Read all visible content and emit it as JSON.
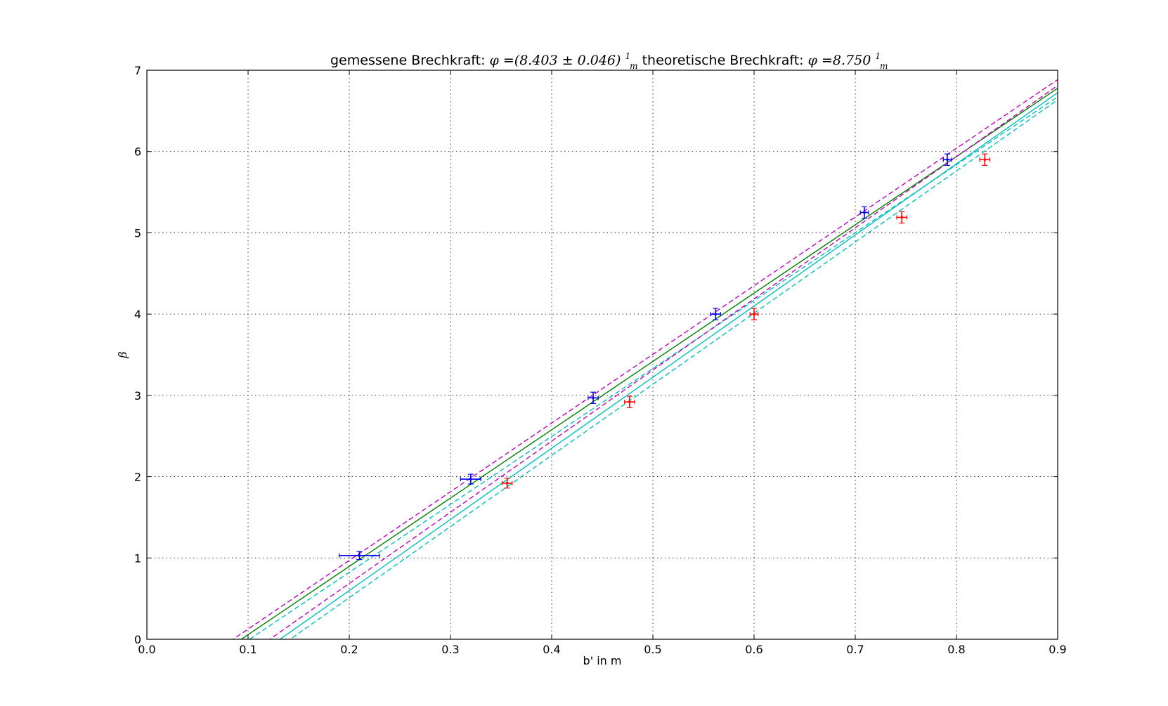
{
  "chart_data": {
    "type": "scatter",
    "title": {
      "part1": "gemessene Brechkraft: ",
      "phi_symbol": "φ",
      "measured_value": "=(8.403 ± 0.046)",
      "frac_num": "1",
      "frac_den": "m",
      "part2": " theoretische Brechkraft:  ",
      "theoretical_value": "=8.750"
    },
    "xlabel": "b' in m",
    "ylabel": "β",
    "xlim": [
      0.0,
      0.9
    ],
    "ylim": [
      0,
      7
    ],
    "x_ticks": [
      "0.0",
      "0.1",
      "0.2",
      "0.3",
      "0.4",
      "0.5",
      "0.6",
      "0.7",
      "0.8",
      "0.9"
    ],
    "y_ticks": [
      "0",
      "1",
      "2",
      "3",
      "4",
      "5",
      "6",
      "7"
    ],
    "grid": true,
    "legend": "none",
    "series": [
      {
        "color": "#0000ff",
        "points": [
          {
            "x": 0.21,
            "y": 1.03,
            "xerr": 0.02,
            "yerr": 0.05
          },
          {
            "x": 0.32,
            "y": 1.97,
            "xerr": 0.01,
            "yerr": 0.06
          },
          {
            "x": 0.441,
            "y": 2.97,
            "xerr": 0.005,
            "yerr": 0.07
          },
          {
            "x": 0.562,
            "y": 4.0,
            "xerr": 0.005,
            "yerr": 0.07
          },
          {
            "x": 0.709,
            "y": 5.25,
            "xerr": 0.004,
            "yerr": 0.07
          },
          {
            "x": 0.791,
            "y": 5.9,
            "xerr": 0.004,
            "yerr": 0.07
          }
        ]
      },
      {
        "color": "#ff0000",
        "points": [
          {
            "x": 0.356,
            "y": 1.92,
            "xerr": 0.005,
            "yerr": 0.06
          },
          {
            "x": 0.477,
            "y": 2.92,
            "xerr": 0.005,
            "yerr": 0.07
          },
          {
            "x": 0.6,
            "y": 4.0,
            "xerr": 0.004,
            "yerr": 0.07
          },
          {
            "x": 0.746,
            "y": 5.19,
            "xerr": 0.005,
            "yerr": 0.07
          },
          {
            "x": 0.828,
            "y": 5.9,
            "xerr": 0.005,
            "yerr": 0.07
          }
        ]
      }
    ],
    "lines": [
      {
        "color": "#007f00",
        "style": "solid",
        "slope": 8.403,
        "intercept": -0.7838
      },
      {
        "color": "#bf00bf",
        "style": "dashed",
        "slope": 8.449,
        "intercept": -0.7198
      },
      {
        "color": "#00bfbf",
        "style": "dashed",
        "slope": 8.357,
        "intercept": -0.8477
      },
      {
        "color": "#00bfbf",
        "style": "solid",
        "slope": 8.75,
        "intercept": -1.151
      },
      {
        "color": "#bf00bf",
        "style": "dashed",
        "slope": 8.75,
        "intercept": -1.063
      },
      {
        "color": "#00bfbf",
        "style": "dashed",
        "slope": 8.75,
        "intercept": -1.2387
      }
    ]
  }
}
